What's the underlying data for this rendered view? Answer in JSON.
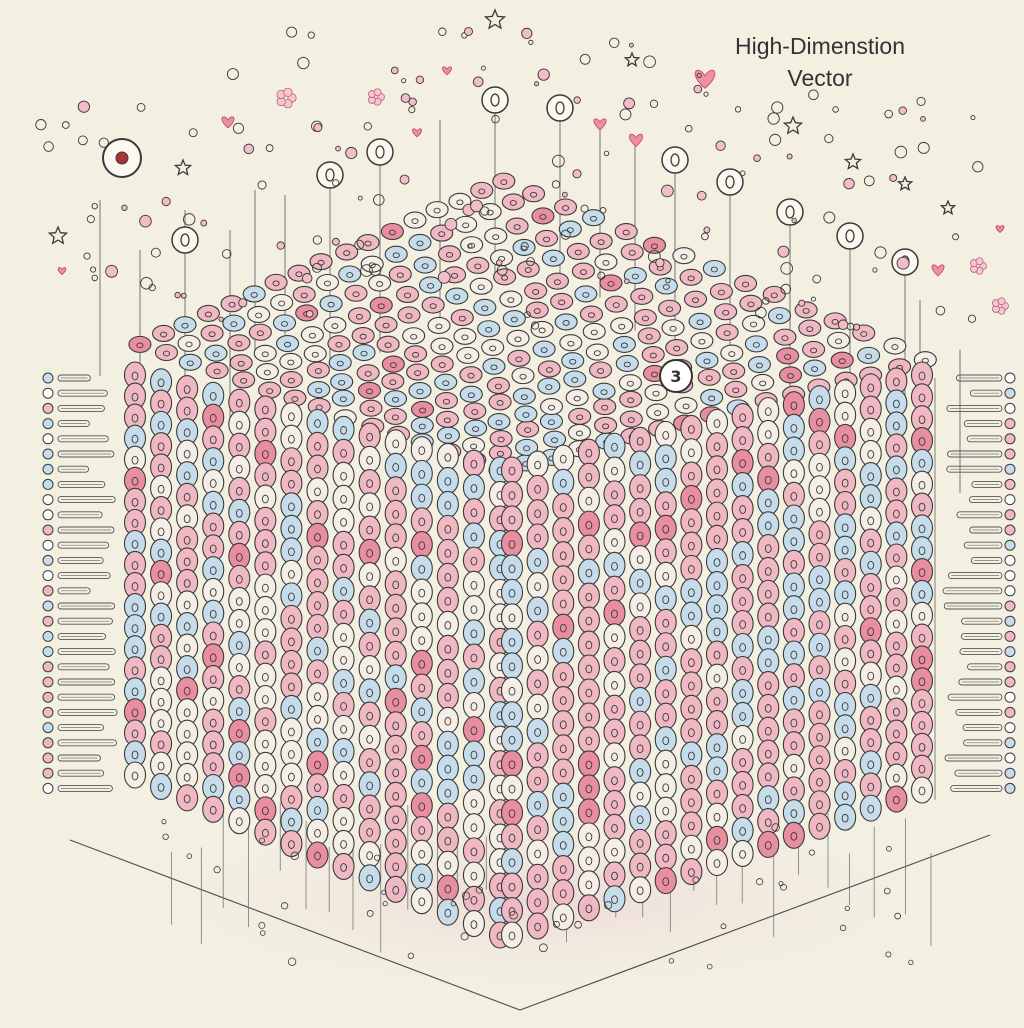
{
  "title": {
    "line1": "High-Dimenstion",
    "line2": "Vector"
  },
  "highlight_label": "3",
  "float_labels": [
    "3",
    "3",
    "3",
    "3",
    "3",
    "3",
    "3",
    "3"
  ],
  "palette": {
    "background": "#f3f0e2",
    "ink": "#3a3a3a",
    "pink": "#f0b8c3",
    "blue": "#c6dcea",
    "cream": "#f4eee6",
    "rose": "#e98ea1",
    "accent_heart": "#ef8fa6"
  },
  "icons": [
    "heart-icon",
    "star-icon",
    "circle-node-icon",
    "flower-icon"
  ]
}
